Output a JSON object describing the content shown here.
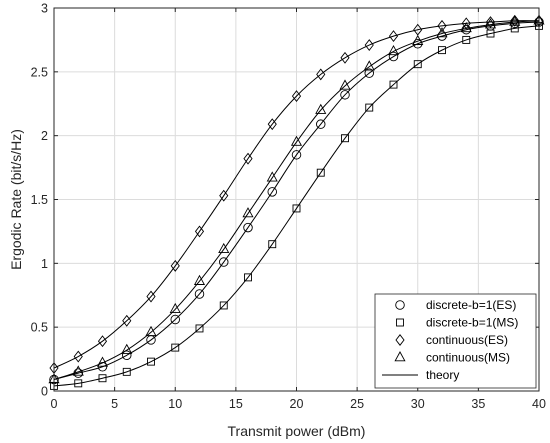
{
  "chart_data": {
    "type": "line",
    "xlabel": "Transmit power (dBm)",
    "ylabel": "Ergodic Rate (bit/s/Hz)",
    "xlim": [
      0,
      40
    ],
    "ylim": [
      0,
      3
    ],
    "x_ticks": [
      0,
      5,
      10,
      15,
      20,
      25,
      30,
      35,
      40
    ],
    "y_ticks": [
      0,
      0.5,
      1,
      1.5,
      2,
      2.5,
      3
    ],
    "x_tick_labels": [
      "0",
      "5",
      "10",
      "15",
      "20",
      "25",
      "30",
      "35",
      "40"
    ],
    "y_tick_labels": [
      "0",
      "0.5",
      "1",
      "1.5",
      "2",
      "2.5",
      "3"
    ],
    "grid": true,
    "legend_position": "bottom-right",
    "x": [
      0,
      2,
      4,
      6,
      8,
      10,
      12,
      14,
      16,
      18,
      20,
      22,
      24,
      26,
      28,
      30,
      32,
      34,
      36,
      38,
      40
    ],
    "series": [
      {
        "name": "discrete-b=1(ES)",
        "marker": "circle",
        "values": [
          0.09,
          0.14,
          0.19,
          0.28,
          0.4,
          0.56,
          0.76,
          1.01,
          1.28,
          1.56,
          1.85,
          2.09,
          2.32,
          2.49,
          2.62,
          2.72,
          2.78,
          2.83,
          2.86,
          2.88,
          2.89
        ]
      },
      {
        "name": "discrete-b=1(MS)",
        "marker": "square",
        "values": [
          0.04,
          0.06,
          0.1,
          0.15,
          0.23,
          0.34,
          0.49,
          0.67,
          0.89,
          1.15,
          1.43,
          1.71,
          1.98,
          2.22,
          2.4,
          2.56,
          2.67,
          2.75,
          2.8,
          2.84,
          2.86
        ]
      },
      {
        "name": "continuous(ES)",
        "marker": "diamond",
        "values": [
          0.18,
          0.27,
          0.39,
          0.55,
          0.74,
          0.98,
          1.25,
          1.53,
          1.82,
          2.09,
          2.31,
          2.48,
          2.61,
          2.71,
          2.78,
          2.83,
          2.86,
          2.88,
          2.89,
          2.9,
          2.9
        ]
      },
      {
        "name": "continuous(MS)",
        "marker": "triangle",
        "values": [
          0.09,
          0.15,
          0.22,
          0.32,
          0.46,
          0.64,
          0.86,
          1.11,
          1.39,
          1.67,
          1.95,
          2.2,
          2.39,
          2.54,
          2.66,
          2.74,
          2.8,
          2.84,
          2.87,
          2.89,
          2.9
        ]
      }
    ],
    "legend": [
      {
        "label": "discrete-b=1(ES)",
        "marker": "circle"
      },
      {
        "label": "discrete-b=1(MS)",
        "marker": "square"
      },
      {
        "label": "continuous(ES)",
        "marker": "diamond"
      },
      {
        "label": "continuous(MS)",
        "marker": "triangle"
      },
      {
        "label": "theory",
        "marker": "line"
      }
    ]
  }
}
